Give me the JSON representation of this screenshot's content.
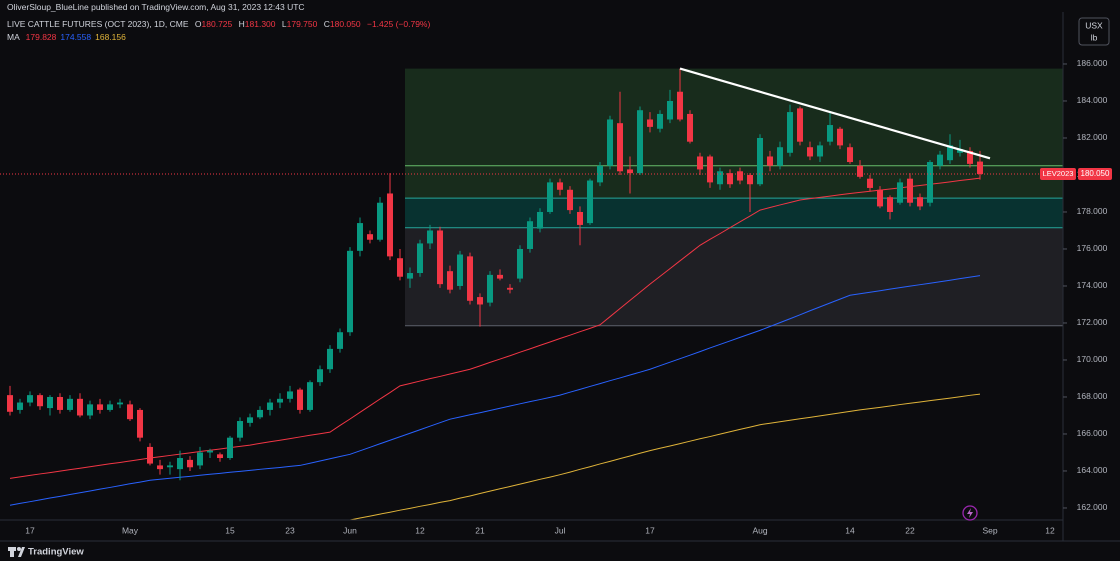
{
  "header": {
    "publisher": "OliverSloup_BlueLine published on TradingView.com, Aug 31, 2023 12:43 UTC",
    "symbol": "LIVE CATTLE FUTURES (OCT 2023), 1D, CME",
    "ohlc": [
      {
        "key": "O",
        "value": "180.725"
      },
      {
        "key": "H",
        "value": "181.300"
      },
      {
        "key": "L",
        "value": "179.750"
      },
      {
        "key": "C",
        "value": "180.050"
      }
    ],
    "change": "−1.425 (−0.79%)",
    "indicator": "MA",
    "unit": [
      "USX",
      "lb"
    ],
    "footer": "TradingView"
  },
  "chart_data": {
    "type": "candlestick",
    "categories": [
      null,
      null,
      "17",
      null,
      null,
      null,
      null,
      null,
      null,
      null,
      null,
      null,
      "May",
      null,
      null,
      null,
      null,
      null,
      null,
      null,
      null,
      null,
      "15",
      null,
      null,
      null,
      null,
      null,
      "23",
      null,
      null,
      null,
      null,
      null,
      "Jun",
      null,
      null,
      null,
      null,
      null,
      null,
      "12",
      null,
      null,
      null,
      null,
      null,
      "21",
      null,
      null,
      null,
      null,
      null,
      null,
      null,
      "Jul",
      null,
      null,
      null,
      null,
      null,
      null,
      null,
      null,
      "17",
      null,
      null,
      null,
      null,
      null,
      null,
      null,
      null,
      null,
      null,
      "Aug",
      null,
      null,
      null,
      null,
      null,
      null,
      null,
      null,
      "14",
      null,
      null,
      null,
      null,
      null,
      "22",
      null,
      null,
      null,
      null,
      null,
      null,
      null,
      "Sep",
      null,
      null,
      null,
      null,
      null,
      "12"
    ],
    "open": [
      168.1,
      167.3,
      167.7,
      168.1,
      167.4,
      168.0,
      167.3,
      167.9,
      167.0,
      167.6,
      167.3,
      167.6,
      167.6,
      167.3,
      165.3,
      164.3,
      164.2,
      164.1,
      164.6,
      164.3,
      165.0,
      164.9,
      164.7,
      165.8,
      166.6,
      166.9,
      167.3,
      167.7,
      167.9,
      168.4,
      167.3,
      168.8,
      169.5,
      170.6,
      171.5,
      175.9,
      176.8,
      176.5,
      179.0,
      175.5,
      174.4,
      174.7,
      176.3,
      177.0,
      174.8,
      174.0,
      175.6,
      173.4,
      173.1,
      174.6,
      173.9,
      174.4,
      176.0,
      177.1,
      178.0,
      179.6,
      179.2,
      178.0,
      177.4,
      179.6,
      180.5,
      182.8,
      180.3,
      180.1,
      183.0,
      182.5,
      183.0,
      184.5,
      183.3,
      181.0,
      181.0,
      179.5,
      180.1,
      180.2,
      180.0,
      179.5,
      181.0,
      180.5,
      181.2,
      183.6,
      181.5,
      181.0,
      181.8,
      182.5,
      181.5,
      180.5,
      179.8,
      179.2,
      178.8,
      178.5,
      179.8,
      178.8,
      178.5,
      180.5,
      180.8,
      181.2,
      181.3,
      180.725,
      null,
      null,
      null,
      null,
      null,
      null,
      null
    ],
    "high": [
      168.6,
      167.9,
      168.3,
      168.2,
      168.1,
      168.2,
      168.1,
      168.2,
      167.8,
      167.9,
      167.8,
      167.9,
      167.8,
      167.4,
      165.5,
      164.6,
      164.5,
      165.1,
      164.8,
      165.3,
      165.2,
      165.0,
      165.9,
      166.9,
      167.1,
      167.5,
      167.9,
      168.2,
      168.6,
      168.5,
      168.9,
      169.7,
      170.8,
      171.7,
      176.1,
      177.7,
      177.0,
      178.8,
      180.1,
      176.0,
      175.0,
      176.5,
      177.3,
      177.2,
      175.1,
      175.9,
      175.8,
      173.6,
      174.8,
      174.9,
      174.1,
      176.2,
      177.7,
      178.2,
      179.8,
      179.8,
      179.4,
      178.3,
      179.8,
      180.7,
      183.2,
      184.5,
      181.0,
      183.7,
      183.4,
      183.5,
      184.6,
      185.75,
      183.5,
      181.2,
      181.1,
      180.4,
      180.3,
      180.4,
      180.1,
      182.2,
      181.3,
      181.8,
      183.8,
      183.7,
      181.8,
      181.8,
      183.4,
      182.6,
      181.7,
      180.8,
      180.0,
      179.4,
      178.9,
      179.8,
      180.1,
      179.0,
      180.8,
      181.3,
      182.2,
      181.9,
      181.5,
      181.3,
      null,
      null,
      null,
      null,
      null,
      null,
      null
    ],
    "low": [
      167.0,
      167.1,
      167.5,
      167.3,
      167.0,
      167.1,
      167.2,
      166.9,
      166.8,
      167.1,
      167.2,
      167.4,
      166.7,
      165.6,
      164.3,
      163.8,
      163.8,
      163.5,
      164.0,
      164.1,
      164.7,
      164.5,
      164.6,
      165.6,
      166.4,
      166.8,
      167.0,
      167.4,
      167.7,
      167.1,
      167.2,
      168.6,
      169.3,
      170.4,
      171.3,
      175.6,
      176.3,
      176.4,
      175.4,
      174.3,
      173.9,
      174.5,
      176.0,
      173.9,
      173.6,
      173.8,
      173.0,
      171.8,
      172.9,
      174.3,
      173.6,
      174.2,
      175.8,
      176.9,
      177.9,
      178.9,
      177.9,
      176.2,
      177.3,
      179.4,
      180.3,
      180.0,
      179.0,
      180.0,
      182.3,
      182.3,
      182.8,
      182.9,
      181.7,
      180.0,
      179.3,
      179.2,
      179.3,
      179.5,
      178.0,
      179.4,
      180.2,
      180.3,
      181.0,
      181.6,
      180.8,
      180.7,
      181.6,
      181.4,
      180.6,
      179.8,
      179.1,
      178.2,
      177.6,
      178.4,
      178.3,
      178.1,
      178.3,
      180.3,
      180.6,
      181.0,
      180.4,
      179.75,
      null,
      null,
      null,
      null,
      null,
      null,
      null
    ],
    "close": [
      167.2,
      167.7,
      168.1,
      167.5,
      168.0,
      167.3,
      167.9,
      167.0,
      167.6,
      167.3,
      167.6,
      167.7,
      166.8,
      165.8,
      164.4,
      164.1,
      164.3,
      164.7,
      164.2,
      165.0,
      165.1,
      164.7,
      165.8,
      166.7,
      166.9,
      167.3,
      167.7,
      167.9,
      168.3,
      167.3,
      168.8,
      169.5,
      170.6,
      171.5,
      175.9,
      177.4,
      176.5,
      178.5,
      175.6,
      174.5,
      174.7,
      176.3,
      177.0,
      174.1,
      173.8,
      175.7,
      173.2,
      173.0,
      174.6,
      174.4,
      173.8,
      176.0,
      177.5,
      178.0,
      179.6,
      179.2,
      178.1,
      177.3,
      179.7,
      180.5,
      183.0,
      180.2,
      180.1,
      183.5,
      182.6,
      183.3,
      184.0,
      183.0,
      181.8,
      180.3,
      179.6,
      180.2,
      179.5,
      179.7,
      179.5,
      182.0,
      180.5,
      181.5,
      183.4,
      181.8,
      181.0,
      181.6,
      182.7,
      181.6,
      180.7,
      179.9,
      179.3,
      178.3,
      178.0,
      179.6,
      178.5,
      178.3,
      180.7,
      181.1,
      181.6,
      181.4,
      180.6,
      180.05,
      null,
      null,
      null,
      null,
      null,
      null,
      null
    ],
    "up_color": "#089981",
    "down_color": "#f23645",
    "series": [
      {
        "color": "#f23645",
        "value_label": "179.828",
        "values": [
          163.6,
          163.68,
          163.76,
          163.84,
          163.91,
          163.99,
          164.07,
          164.15,
          164.23,
          164.31,
          164.39,
          164.46,
          164.54,
          164.62,
          164.7,
          164.77,
          164.84,
          164.91,
          164.98,
          165.05,
          165.12,
          165.19,
          165.26,
          165.33,
          165.4,
          165.49,
          165.58,
          165.66,
          165.75,
          165.84,
          165.93,
          166.01,
          166.1,
          166.46,
          166.81,
          167.17,
          167.53,
          167.89,
          168.24,
          168.6,
          168.73,
          168.86,
          168.99,
          169.11,
          169.24,
          169.37,
          169.5,
          169.68,
          169.87,
          170.05,
          170.23,
          170.42,
          170.6,
          170.79,
          170.97,
          171.16,
          171.34,
          171.53,
          171.71,
          171.9,
          172.34,
          172.78,
          173.22,
          173.66,
          174.1,
          174.52,
          174.94,
          175.36,
          175.78,
          176.2,
          176.52,
          176.83,
          177.15,
          177.47,
          177.78,
          178.1,
          178.24,
          178.38,
          178.51,
          178.65,
          178.72,
          178.79,
          178.86,
          178.93,
          179.0,
          179.06,
          179.12,
          179.18,
          179.24,
          179.3,
          179.37,
          179.43,
          179.5,
          179.56,
          179.63,
          179.7,
          179.76,
          179.828,
          null,
          null,
          null,
          null,
          null,
          null,
          null
        ]
      },
      {
        "color": "#2962ff",
        "value_label": "174.558",
        "values": [
          162.15,
          162.25,
          162.34,
          162.44,
          162.54,
          162.63,
          162.73,
          162.82,
          162.92,
          163.02,
          163.11,
          163.21,
          163.31,
          163.4,
          163.5,
          163.55,
          163.61,
          163.66,
          163.71,
          163.77,
          163.82,
          163.87,
          163.93,
          163.98,
          164.03,
          164.09,
          164.14,
          164.19,
          164.25,
          164.3,
          164.42,
          164.54,
          164.66,
          164.78,
          164.9,
          165.09,
          165.28,
          165.47,
          165.66,
          165.85,
          166.04,
          166.23,
          166.42,
          166.61,
          166.8,
          166.92,
          167.04,
          167.15,
          167.27,
          167.39,
          167.51,
          167.63,
          167.75,
          167.86,
          167.98,
          168.1,
          168.26,
          168.41,
          168.57,
          168.72,
          168.88,
          169.03,
          169.19,
          169.34,
          169.5,
          169.69,
          169.88,
          170.07,
          170.26,
          170.45,
          170.65,
          170.84,
          171.03,
          171.22,
          171.41,
          171.6,
          171.81,
          172.02,
          172.23,
          172.44,
          172.66,
          172.87,
          173.08,
          173.29,
          173.5,
          173.58,
          173.66,
          173.74,
          173.83,
          173.91,
          173.99,
          174.07,
          174.15,
          174.23,
          174.31,
          174.4,
          174.48,
          174.558,
          null,
          null,
          null,
          null,
          null,
          null,
          null
        ]
      },
      {
        "color": "#e0b43a",
        "value_label": "168.156",
        "values": [
          null,
          null,
          null,
          null,
          null,
          null,
          null,
          null,
          null,
          null,
          null,
          null,
          null,
          null,
          null,
          null,
          null,
          null,
          null,
          null,
          null,
          null,
          null,
          null,
          null,
          null,
          null,
          null,
          null,
          null,
          null,
          null,
          null,
          null,
          161.35,
          161.46,
          161.56,
          161.67,
          161.77,
          161.88,
          161.98,
          162.09,
          162.19,
          162.3,
          162.4,
          162.53,
          162.65,
          162.78,
          162.91,
          163.04,
          163.16,
          163.29,
          163.42,
          163.55,
          163.67,
          163.8,
          163.94,
          164.09,
          164.23,
          164.38,
          164.52,
          164.67,
          164.81,
          164.96,
          165.1,
          165.23,
          165.35,
          165.48,
          165.61,
          165.74,
          165.86,
          165.99,
          166.12,
          166.25,
          166.37,
          166.5,
          166.58,
          166.66,
          166.74,
          166.82,
          166.9,
          166.98,
          167.06,
          167.14,
          167.22,
          167.3,
          167.37,
          167.44,
          167.51,
          167.59,
          167.66,
          167.73,
          167.8,
          167.87,
          167.94,
          168.01,
          168.09,
          168.156,
          null,
          null,
          null,
          null,
          null,
          null,
          null
        ]
      }
    ],
    "zones": [
      {
        "top": 185.75,
        "bottom": 178.75,
        "color": "rgba(76,175,80,0.2)"
      },
      {
        "top": 178.75,
        "bottom": 177.15,
        "color": "rgba(0,150,136,0.28)"
      },
      {
        "top": 177.15,
        "bottom": 171.85,
        "color": "rgba(120,123,134,0.18)"
      }
    ],
    "levels": [
      {
        "value": 180.5,
        "color": "#66bb6a"
      },
      {
        "value": 178.75,
        "color": "#26a69a"
      },
      {
        "value": 177.15,
        "color": "#26a69a"
      },
      {
        "value": 171.85,
        "color": "#5d606b"
      }
    ],
    "trend_line": {
      "start": 185.75,
      "end": 180.9,
      "color": "#ffffff"
    },
    "price_line": {
      "value": 180.05,
      "label": "180.050",
      "name": "LEV2023"
    },
    "ylim": [
      161.35,
      188.81
    ],
    "yticks": [
      {
        "value": 162,
        "label": "162.000"
      },
      {
        "value": 164,
        "label": "164.000"
      },
      {
        "value": 166,
        "label": "166.000"
      },
      {
        "value": 168,
        "label": "168.000"
      },
      {
        "value": 170,
        "label": "170.000"
      },
      {
        "value": 172,
        "label": "172.000"
      },
      {
        "value": 174,
        "label": "174.000"
      },
      {
        "value": 176,
        "label": "176.000"
      },
      {
        "value": 178,
        "label": "178.000"
      },
      {
        "value": 180,
        "label": "180.000"
      },
      {
        "value": 182,
        "label": "182.000"
      },
      {
        "value": 184,
        "label": "184.000"
      },
      {
        "value": 186,
        "label": "186.000"
      }
    ],
    "grid": false
  }
}
